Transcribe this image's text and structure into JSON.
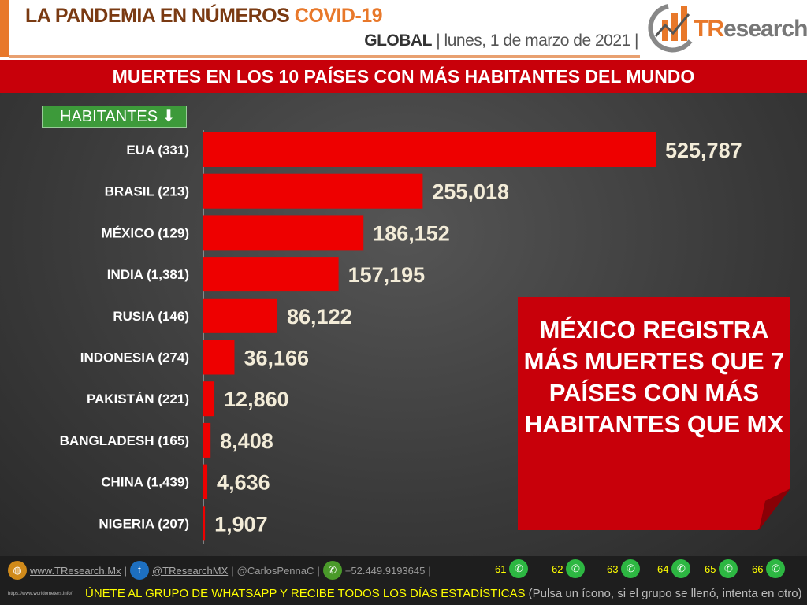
{
  "header": {
    "title_main": "LA PANDEMIA EN NÚMEROS",
    "title_accent": "COVID-19",
    "scope": "GLOBAL",
    "date": "| lunes, 1 de marzo de 2021 |",
    "logo_text_accent": "TR",
    "logo_text_rest": "esearch"
  },
  "banner": "MUERTES EN LOS 10 PAÍSES CON MÁS HABITANTES DEL MUNDO",
  "sort_label": "HABITANTES",
  "callout": "MÉXICO REGISTRA MÁS MUERTES QUE 7 PAÍSES CON MÁS HABITANTES QUE MX",
  "chart_data": {
    "type": "bar",
    "orientation": "horizontal",
    "categories": [
      "EUA (331)",
      "BRASIL (213)",
      "MÉXICO (129)",
      "INDIA (1,381)",
      "RUSIA (146)",
      "INDONESIA (274)",
      "PAKISTÁN (221)",
      "BANGLADESH (165)",
      "CHINA (1,439)",
      "NIGERIA (207)"
    ],
    "values": [
      525787,
      255018,
      186152,
      157195,
      86122,
      36166,
      12860,
      8408,
      4636,
      1907
    ],
    "data_labels": [
      "525,787",
      "255,018",
      "186,152",
      "157,195",
      "86,122",
      "36,166",
      "12,860",
      "8,408",
      "4,636",
      "1,907"
    ],
    "bar_color": "#ee0000",
    "grid": false
  },
  "footer": {
    "website": "www.TResearch.Mx",
    "twitter": "@TResearchMX",
    "personal": "@CarlosPennaC",
    "phone": "+52.449.9193645",
    "groups": [
      "61",
      "62",
      "63",
      "64",
      "65",
      "66"
    ],
    "cta": "ÚNETE AL GRUPO DE WHATSAPP Y RECIBE TODOS LOS DÍAS ESTADÍSTICAS",
    "cta_note": "(Pulsa un ícono, si el grupo se llenó, intenta en otro)",
    "source": "https://www.worldometers.info/"
  }
}
